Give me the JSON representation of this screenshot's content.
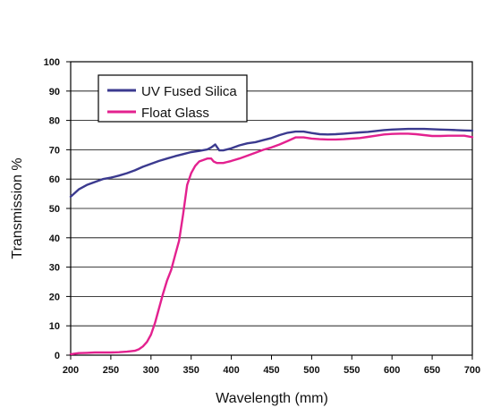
{
  "chart_data": {
    "type": "line",
    "title": "",
    "xlabel": "Wavelength (mm)",
    "ylabel": "Transmission %",
    "xlim": [
      200,
      700
    ],
    "ylim": [
      0,
      100
    ],
    "xticks": [
      200,
      250,
      300,
      350,
      400,
      450,
      500,
      550,
      600,
      650,
      700
    ],
    "yticks": [
      0,
      10,
      20,
      30,
      40,
      50,
      60,
      70,
      80,
      90,
      100
    ],
    "grid": "horizontal",
    "legend": "top-left",
    "series": [
      {
        "name": "UV Fused Silica",
        "color": "#3b3a8f",
        "points": [
          [
            200,
            54
          ],
          [
            210,
            56.5
          ],
          [
            220,
            58
          ],
          [
            230,
            59
          ],
          [
            240,
            60
          ],
          [
            250,
            60.5
          ],
          [
            260,
            61.2
          ],
          [
            270,
            62
          ],
          [
            280,
            63
          ],
          [
            290,
            64.2
          ],
          [
            300,
            65.2
          ],
          [
            310,
            66.2
          ],
          [
            320,
            67
          ],
          [
            330,
            67.8
          ],
          [
            340,
            68.5
          ],
          [
            350,
            69.2
          ],
          [
            360,
            69.6
          ],
          [
            370,
            70.1
          ],
          [
            375,
            70.8
          ],
          [
            380,
            71.8
          ],
          [
            385,
            69.8
          ],
          [
            390,
            69.8
          ],
          [
            400,
            70.5
          ],
          [
            410,
            71.5
          ],
          [
            420,
            72.2
          ],
          [
            430,
            72.6
          ],
          [
            440,
            73.3
          ],
          [
            450,
            74
          ],
          [
            460,
            75
          ],
          [
            470,
            75.8
          ],
          [
            480,
            76.2
          ],
          [
            490,
            76.2
          ],
          [
            500,
            75.7
          ],
          [
            510,
            75.3
          ],
          [
            520,
            75.2
          ],
          [
            530,
            75.3
          ],
          [
            540,
            75.5
          ],
          [
            550,
            75.7
          ],
          [
            560,
            75.9
          ],
          [
            570,
            76.1
          ],
          [
            580,
            76.4
          ],
          [
            590,
            76.7
          ],
          [
            600,
            76.9
          ],
          [
            610,
            77
          ],
          [
            620,
            77.1
          ],
          [
            630,
            77.1
          ],
          [
            640,
            77.1
          ],
          [
            650,
            77
          ],
          [
            660,
            76.9
          ],
          [
            670,
            76.8
          ],
          [
            680,
            76.7
          ],
          [
            690,
            76.6
          ],
          [
            700,
            76.5
          ]
        ]
      },
      {
        "name": "Float Glass",
        "color": "#e3218f",
        "points": [
          [
            200,
            0.3
          ],
          [
            210,
            0.7
          ],
          [
            220,
            0.8
          ],
          [
            230,
            0.9
          ],
          [
            240,
            0.9
          ],
          [
            250,
            0.9
          ],
          [
            260,
            1
          ],
          [
            270,
            1.2
          ],
          [
            280,
            1.5
          ],
          [
            285,
            2
          ],
          [
            290,
            3
          ],
          [
            295,
            4.5
          ],
          [
            300,
            7
          ],
          [
            305,
            11
          ],
          [
            310,
            16
          ],
          [
            315,
            21
          ],
          [
            320,
            25.5
          ],
          [
            325,
            29
          ],
          [
            330,
            34
          ],
          [
            335,
            39
          ],
          [
            340,
            48
          ],
          [
            345,
            58
          ],
          [
            350,
            62
          ],
          [
            355,
            64.5
          ],
          [
            360,
            66
          ],
          [
            365,
            66.5
          ],
          [
            370,
            67
          ],
          [
            375,
            67
          ],
          [
            378,
            66
          ],
          [
            382,
            65.5
          ],
          [
            390,
            65.5
          ],
          [
            400,
            66.2
          ],
          [
            410,
            67
          ],
          [
            420,
            68
          ],
          [
            430,
            69
          ],
          [
            440,
            70
          ],
          [
            450,
            70.8
          ],
          [
            460,
            71.8
          ],
          [
            470,
            73
          ],
          [
            480,
            74.2
          ],
          [
            490,
            74.2
          ],
          [
            500,
            73.8
          ],
          [
            510,
            73.6
          ],
          [
            520,
            73.5
          ],
          [
            530,
            73.5
          ],
          [
            540,
            73.6
          ],
          [
            550,
            73.8
          ],
          [
            560,
            74
          ],
          [
            570,
            74.4
          ],
          [
            580,
            74.8
          ],
          [
            590,
            75.2
          ],
          [
            600,
            75.4
          ],
          [
            610,
            75.5
          ],
          [
            620,
            75.5
          ],
          [
            630,
            75.3
          ],
          [
            640,
            75
          ],
          [
            650,
            74.7
          ],
          [
            660,
            74.7
          ],
          [
            670,
            74.8
          ],
          [
            680,
            74.8
          ],
          [
            690,
            74.8
          ],
          [
            700,
            74.3
          ]
        ]
      }
    ]
  }
}
